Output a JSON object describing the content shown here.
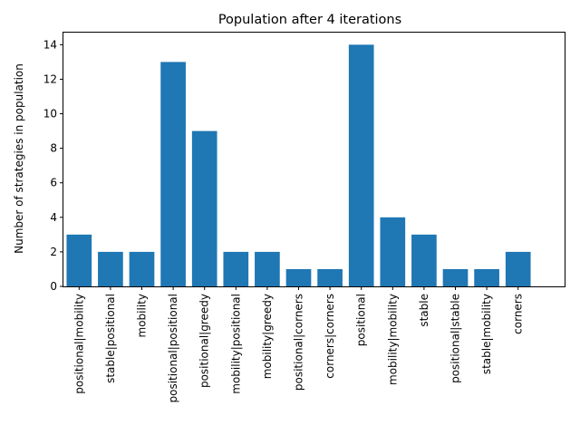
{
  "chart_data": {
    "type": "bar",
    "title": "Population after 4 iterations",
    "xlabel": "",
    "ylabel": "Number of strategies in population",
    "ylim": [
      0,
      14.7
    ],
    "yticks": [
      0,
      2,
      4,
      6,
      8,
      10,
      12,
      14
    ],
    "categories": [
      "positional|mobility",
      "stable|positional",
      "mobility",
      "positional|positional",
      "positional|greedy",
      "mobility|positional",
      "mobility|greedy",
      "positional|corners",
      "corners|corners",
      "positional",
      "mobility|mobility",
      "stable",
      "positional|stable",
      "stable|mobility",
      "corners"
    ],
    "values": [
      3,
      2,
      2,
      13,
      9,
      2,
      2,
      1,
      1,
      14,
      4,
      3,
      1,
      1,
      2
    ],
    "bar_color": "#1f77b4",
    "grid": false
  }
}
